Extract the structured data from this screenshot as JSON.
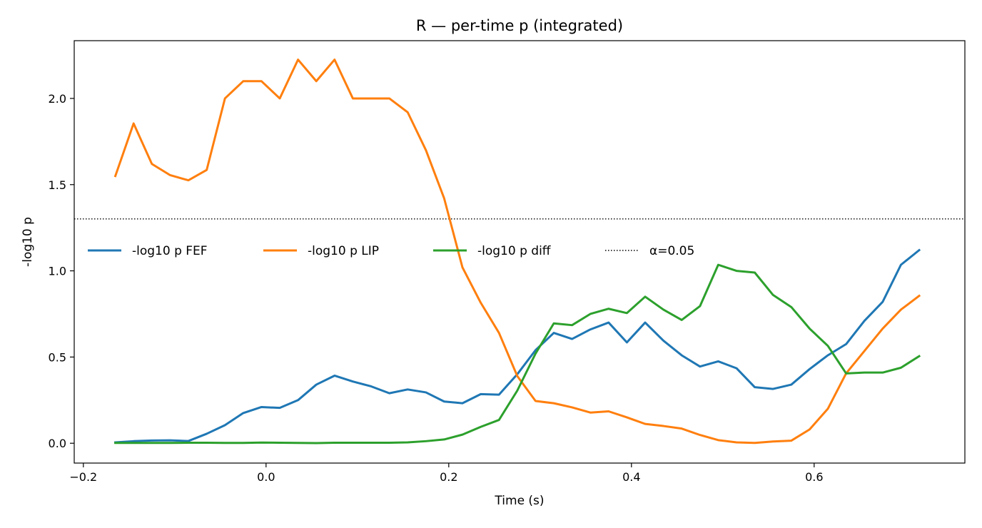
{
  "chart_data": {
    "type": "line",
    "title": "R — per-time p (integrated)",
    "xlabel": "Time (s)",
    "ylabel": "-log10 p",
    "xlim": [
      -0.21,
      0.765
    ],
    "ylim": [
      -0.115,
      2.335
    ],
    "xticks": [
      -0.2,
      0.0,
      0.2,
      0.4,
      0.6
    ],
    "xtick_labels": [
      "−0.2",
      "0.0",
      "0.2",
      "0.4",
      "0.6"
    ],
    "yticks": [
      0.0,
      0.5,
      1.0,
      1.5,
      2.0
    ],
    "ytick_labels": [
      "0.0",
      "0.5",
      "1.0",
      "1.5",
      "2.0"
    ],
    "grid": false,
    "legend_position": "center-left",
    "x": [
      -0.165,
      -0.145,
      -0.125,
      -0.105,
      -0.085,
      -0.065,
      -0.045,
      -0.025,
      -0.005,
      0.015,
      0.035,
      0.055,
      0.075,
      0.095,
      0.115,
      0.135,
      0.155,
      0.175,
      0.195,
      0.215,
      0.235,
      0.255,
      0.275,
      0.295,
      0.315,
      0.335,
      0.355,
      0.375,
      0.395,
      0.415,
      0.435,
      0.455,
      0.475,
      0.495,
      0.515,
      0.535,
      0.555,
      0.575,
      0.595,
      0.615,
      0.635,
      0.655,
      0.675,
      0.695,
      0.715
    ],
    "series": [
      {
        "name": "-log10 p FEF",
        "color": "#1f77b4",
        "values": [
          0.005,
          0.012,
          0.016,
          0.017,
          0.013,
          0.055,
          0.105,
          0.175,
          0.21,
          0.205,
          0.25,
          0.34,
          0.392,
          0.358,
          0.33,
          0.29,
          0.312,
          0.295,
          0.242,
          0.232,
          0.285,
          0.282,
          0.4,
          0.54,
          0.64,
          0.605,
          0.66,
          0.7,
          0.585,
          0.7,
          0.595,
          0.51,
          0.445,
          0.475,
          0.435,
          0.325,
          0.315,
          0.34,
          0.43,
          0.51,
          0.575,
          0.71,
          0.82,
          1.035,
          1.12
        ]
      },
      {
        "name": "-log10 p LIP",
        "color": "#ff7f0e",
        "values": [
          1.55,
          1.855,
          1.62,
          1.555,
          1.525,
          1.585,
          2.0,
          2.1,
          2.1,
          2.0,
          2.225,
          2.1,
          2.225,
          2.0,
          2.0,
          2.0,
          1.92,
          1.7,
          1.42,
          1.02,
          0.815,
          0.64,
          0.39,
          0.245,
          0.232,
          0.208,
          0.178,
          0.185,
          0.15,
          0.112,
          0.1,
          0.085,
          0.048,
          0.018,
          0.005,
          0.002,
          0.01,
          0.015,
          0.08,
          0.2,
          0.405,
          0.535,
          0.665,
          0.775,
          0.855
        ]
      },
      {
        "name": "-log10 p diff",
        "color": "#2ca02c",
        "values": [
          0.002,
          0.002,
          0.002,
          0.002,
          0.003,
          0.003,
          0.002,
          0.002,
          0.004,
          0.003,
          0.002,
          0.001,
          0.003,
          0.003,
          0.003,
          0.003,
          0.005,
          0.012,
          0.022,
          0.05,
          0.095,
          0.135,
          0.305,
          0.52,
          0.695,
          0.685,
          0.75,
          0.78,
          0.755,
          0.85,
          0.775,
          0.715,
          0.795,
          1.035,
          1.0,
          0.99,
          0.86,
          0.79,
          0.665,
          0.565,
          0.405,
          0.41,
          0.41,
          0.438,
          0.505
        ]
      }
    ],
    "reference_line": {
      "name": "α=0.05",
      "y": 1.30103,
      "style": "dotted",
      "color": "#000000"
    }
  }
}
